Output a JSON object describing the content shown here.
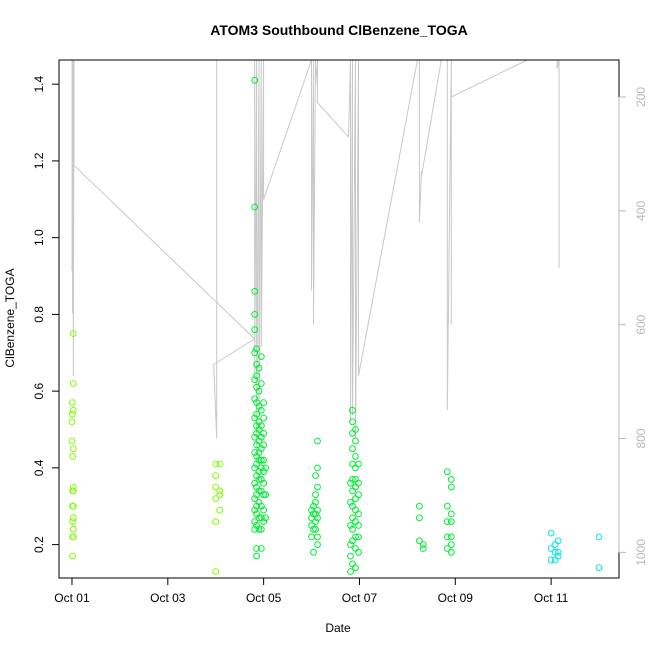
{
  "chart_data": {
    "type": "scatter",
    "title": "ATOM3 Southbound ClBenzene_TOGA",
    "xlabel": "Date",
    "ylabel": "ClBenzene_TOGA",
    "x_ticks": [
      "Oct 01",
      "Oct 03",
      "Oct 05",
      "Oct 07",
      "Oct 09",
      "Oct 11"
    ],
    "y_ticks": [
      "0.2",
      "0.4",
      "0.6",
      "0.8",
      "1.0",
      "1.2",
      "1.4"
    ],
    "y2_ticks": [
      "200",
      "400",
      "600",
      "800",
      "1000"
    ],
    "xlim": [
      "2016-09-30T17:30",
      "2016-10-12T10:00"
    ],
    "ylim": [
      0.113,
      1.463
    ],
    "y2lim": [
      1045,
      135
    ],
    "y2_reversed": true,
    "grid": false,
    "colors": {
      "altitude_line": "#c8c8c8",
      "right_axis": "#b8b8b8",
      "points_early": "#7fff00",
      "points_mid": "#00ee33",
      "points_late": "#00e6e6"
    },
    "series": [
      {
        "role": "points",
        "axis": "left",
        "values": [
          [
            "2016-10-01T00:00",
            0.52
          ],
          [
            "2016-10-01T00:00",
            0.47
          ],
          [
            "2016-10-01T00:10",
            0.57
          ],
          [
            "2016-10-01T00:10",
            0.54
          ],
          [
            "2016-10-01T00:20",
            0.43
          ],
          [
            "2016-10-01T00:20",
            0.34
          ],
          [
            "2016-10-01T00:20",
            0.3
          ],
          [
            "2016-10-01T00:20",
            0.26
          ],
          [
            "2016-10-01T00:20",
            0.22
          ],
          [
            "2016-10-01T00:20",
            0.17
          ],
          [
            "2016-10-01T00:40",
            0.75
          ],
          [
            "2016-10-01T00:40",
            0.62
          ],
          [
            "2016-10-01T00:40",
            0.55
          ],
          [
            "2016-10-01T00:40",
            0.45
          ],
          [
            "2016-10-01T00:40",
            0.35
          ],
          [
            "2016-10-01T00:40",
            0.34
          ],
          [
            "2016-10-01T00:40",
            0.3
          ],
          [
            "2016-10-01T00:40",
            0.27
          ],
          [
            "2016-10-01T00:40",
            0.24
          ],
          [
            "2016-10-01T00:40",
            0.22
          ],
          [
            "2016-10-04T00:00",
            0.41
          ],
          [
            "2016-10-04T00:00",
            0.38
          ],
          [
            "2016-10-04T00:00",
            0.35
          ],
          [
            "2016-10-04T00:00",
            0.32
          ],
          [
            "2016-10-04T00:00",
            0.26
          ],
          [
            "2016-10-04T00:00",
            0.13
          ],
          [
            "2016-10-04T02:00",
            0.41
          ],
          [
            "2016-10-04T02:00",
            0.34
          ],
          [
            "2016-10-04T02:00",
            0.33
          ],
          [
            "2016-10-04T02:00",
            0.29
          ],
          [
            "2016-10-04T19:30",
            1.41
          ],
          [
            "2016-10-04T19:30",
            1.08
          ],
          [
            "2016-10-04T19:30",
            0.86
          ],
          [
            "2016-10-04T19:30",
            0.8
          ],
          [
            "2016-10-04T19:30",
            0.76
          ],
          [
            "2016-10-04T19:30",
            0.7
          ],
          [
            "2016-10-04T19:30",
            0.63
          ],
          [
            "2016-10-04T19:30",
            0.58
          ],
          [
            "2016-10-04T19:30",
            0.53
          ],
          [
            "2016-10-04T19:30",
            0.48
          ],
          [
            "2016-10-04T19:30",
            0.44
          ],
          [
            "2016-10-04T19:30",
            0.4
          ],
          [
            "2016-10-04T19:30",
            0.36
          ],
          [
            "2016-10-04T19:30",
            0.32
          ],
          [
            "2016-10-04T19:30",
            0.29
          ],
          [
            "2016-10-04T19:30",
            0.26
          ],
          [
            "2016-10-04T19:30",
            0.24
          ],
          [
            "2016-10-04T20:30",
            0.71
          ],
          [
            "2016-10-04T20:30",
            0.67
          ],
          [
            "2016-10-04T20:30",
            0.64
          ],
          [
            "2016-10-04T20:30",
            0.61
          ],
          [
            "2016-10-04T20:30",
            0.57
          ],
          [
            "2016-10-04T20:30",
            0.54
          ],
          [
            "2016-10-04T20:30",
            0.51
          ],
          [
            "2016-10-04T20:30",
            0.49
          ],
          [
            "2016-10-04T20:30",
            0.46
          ],
          [
            "2016-10-04T20:30",
            0.43
          ],
          [
            "2016-10-04T20:30",
            0.41
          ],
          [
            "2016-10-04T20:30",
            0.38
          ],
          [
            "2016-10-04T20:30",
            0.35
          ],
          [
            "2016-10-04T20:30",
            0.33
          ],
          [
            "2016-10-04T20:30",
            0.3
          ],
          [
            "2016-10-04T20:30",
            0.28
          ],
          [
            "2016-10-04T20:30",
            0.25
          ],
          [
            "2016-10-04T20:30",
            0.19
          ],
          [
            "2016-10-04T20:30",
            0.17
          ],
          [
            "2016-10-04T21:40",
            0.66
          ],
          [
            "2016-10-04T21:40",
            0.6
          ],
          [
            "2016-10-04T21:40",
            0.56
          ],
          [
            "2016-10-04T21:40",
            0.52
          ],
          [
            "2016-10-04T21:40",
            0.5
          ],
          [
            "2016-10-04T21:40",
            0.47
          ],
          [
            "2016-10-04T21:40",
            0.44
          ],
          [
            "2016-10-04T21:40",
            0.42
          ],
          [
            "2016-10-04T21:40",
            0.39
          ],
          [
            "2016-10-04T21:40",
            0.37
          ],
          [
            "2016-10-04T21:40",
            0.34
          ],
          [
            "2016-10-04T21:40",
            0.31
          ],
          [
            "2016-10-04T21:40",
            0.27
          ],
          [
            "2016-10-04T21:40",
            0.24
          ],
          [
            "2016-10-04T22:50",
            0.69
          ],
          [
            "2016-10-04T22:50",
            0.62
          ],
          [
            "2016-10-04T22:50",
            0.55
          ],
          [
            "2016-10-04T22:50",
            0.51
          ],
          [
            "2016-10-04T22:50",
            0.48
          ],
          [
            "2016-10-04T22:50",
            0.45
          ],
          [
            "2016-10-04T22:50",
            0.42
          ],
          [
            "2016-10-04T22:50",
            0.4
          ],
          [
            "2016-10-04T22:50",
            0.37
          ],
          [
            "2016-10-04T22:50",
            0.34
          ],
          [
            "2016-10-04T22:50",
            0.3
          ],
          [
            "2016-10-04T22:50",
            0.27
          ],
          [
            "2016-10-04T22:50",
            0.24
          ],
          [
            "2016-10-04T22:50",
            0.19
          ],
          [
            "2016-10-05T00:00",
            0.57
          ],
          [
            "2016-10-05T00:00",
            0.53
          ],
          [
            "2016-10-05T00:00",
            0.49
          ],
          [
            "2016-10-05T00:00",
            0.46
          ],
          [
            "2016-10-05T00:00",
            0.42
          ],
          [
            "2016-10-05T00:00",
            0.39
          ],
          [
            "2016-10-05T00:00",
            0.36
          ],
          [
            "2016-10-05T00:00",
            0.33
          ],
          [
            "2016-10-05T00:00",
            0.29
          ],
          [
            "2016-10-05T00:00",
            0.26
          ],
          [
            "2016-10-05T01:00",
            0.4
          ],
          [
            "2016-10-05T01:00",
            0.33
          ],
          [
            "2016-10-05T01:00",
            0.27
          ],
          [
            "2016-10-06T00:00",
            0.29
          ],
          [
            "2016-10-06T00:00",
            0.27
          ],
          [
            "2016-10-06T00:00",
            0.25
          ],
          [
            "2016-10-06T00:00",
            0.22
          ],
          [
            "2016-10-06T01:00",
            0.3
          ],
          [
            "2016-10-06T01:00",
            0.28
          ],
          [
            "2016-10-06T01:00",
            0.24
          ],
          [
            "2016-10-06T01:00",
            0.18
          ],
          [
            "2016-10-06T02:00",
            0.38
          ],
          [
            "2016-10-06T02:00",
            0.33
          ],
          [
            "2016-10-06T02:00",
            0.31
          ],
          [
            "2016-10-06T02:00",
            0.28
          ],
          [
            "2016-10-06T02:00",
            0.26
          ],
          [
            "2016-10-06T02:00",
            0.24
          ],
          [
            "2016-10-06T03:00",
            0.47
          ],
          [
            "2016-10-06T03:00",
            0.4
          ],
          [
            "2016-10-06T03:00",
            0.35
          ],
          [
            "2016-10-06T03:00",
            0.29
          ],
          [
            "2016-10-06T03:00",
            0.27
          ],
          [
            "2016-10-06T03:00",
            0.22
          ],
          [
            "2016-10-06T03:00",
            0.2
          ],
          [
            "2016-10-06T19:30",
            0.36
          ],
          [
            "2016-10-06T19:30",
            0.31
          ],
          [
            "2016-10-06T19:30",
            0.25
          ],
          [
            "2016-10-06T19:30",
            0.2
          ],
          [
            "2016-10-06T19:30",
            0.17
          ],
          [
            "2016-10-06T19:30",
            0.13
          ],
          [
            "2016-10-06T20:30",
            0.55
          ],
          [
            "2016-10-06T20:30",
            0.52
          ],
          [
            "2016-10-06T20:30",
            0.49
          ],
          [
            "2016-10-06T20:30",
            0.45
          ],
          [
            "2016-10-06T20:30",
            0.41
          ],
          [
            "2016-10-06T20:30",
            0.37
          ],
          [
            "2016-10-06T20:30",
            0.34
          ],
          [
            "2016-10-06T20:30",
            0.3
          ],
          [
            "2016-10-06T20:30",
            0.27
          ],
          [
            "2016-10-06T20:30",
            0.24
          ],
          [
            "2016-10-06T20:30",
            0.21
          ],
          [
            "2016-10-06T20:30",
            0.15
          ],
          [
            "2016-10-06T22:00",
            0.5
          ],
          [
            "2016-10-06T22:00",
            0.47
          ],
          [
            "2016-10-06T22:00",
            0.43
          ],
          [
            "2016-10-06T22:00",
            0.4
          ],
          [
            "2016-10-06T22:00",
            0.37
          ],
          [
            "2016-10-06T22:00",
            0.35
          ],
          [
            "2016-10-06T22:00",
            0.32
          ],
          [
            "2016-10-06T22:00",
            0.29
          ],
          [
            "2016-10-06T22:00",
            0.26
          ],
          [
            "2016-10-06T22:00",
            0.22
          ],
          [
            "2016-10-06T22:00",
            0.19
          ],
          [
            "2016-10-06T22:00",
            0.14
          ],
          [
            "2016-10-06T23:30",
            0.41
          ],
          [
            "2016-10-06T23:30",
            0.36
          ],
          [
            "2016-10-06T23:30",
            0.33
          ],
          [
            "2016-10-06T23:30",
            0.28
          ],
          [
            "2016-10-06T23:30",
            0.25
          ],
          [
            "2016-10-06T23:30",
            0.22
          ],
          [
            "2016-10-06T23:30",
            0.18
          ],
          [
            "2016-10-08T06:00",
            0.3
          ],
          [
            "2016-10-08T06:00",
            0.27
          ],
          [
            "2016-10-08T06:00",
            0.21
          ],
          [
            "2016-10-08T08:00",
            0.2
          ],
          [
            "2016-10-08T08:00",
            0.19
          ],
          [
            "2016-10-08T20:00",
            0.39
          ],
          [
            "2016-10-08T20:00",
            0.3
          ],
          [
            "2016-10-08T20:00",
            0.26
          ],
          [
            "2016-10-08T20:00",
            0.22
          ],
          [
            "2016-10-08T20:00",
            0.19
          ],
          [
            "2016-10-08T22:00",
            0.37
          ],
          [
            "2016-10-08T22:00",
            0.35
          ],
          [
            "2016-10-08T22:00",
            0.28
          ],
          [
            "2016-10-08T22:00",
            0.26
          ],
          [
            "2016-10-08T22:00",
            0.22
          ],
          [
            "2016-10-08T22:00",
            0.2
          ],
          [
            "2016-10-08T22:00",
            0.18
          ],
          [
            "2016-10-11T00:00",
            0.23
          ],
          [
            "2016-10-11T00:00",
            0.19
          ],
          [
            "2016-10-11T00:00",
            0.16
          ],
          [
            "2016-10-11T02:00",
            0.2
          ],
          [
            "2016-10-11T02:00",
            0.18
          ],
          [
            "2016-10-11T02:00",
            0.16
          ],
          [
            "2016-10-11T03:30",
            0.21
          ],
          [
            "2016-10-11T03:30",
            0.18
          ],
          [
            "2016-10-11T03:30",
            0.17
          ],
          [
            "2016-10-12T00:00",
            0.22
          ],
          [
            "2016-10-12T00:00",
            0.14
          ]
        ]
      },
      {
        "role": "altitude-line",
        "axis": "right",
        "values": [
          [
            "2016-10-01T00:00",
            135
          ],
          [
            "2016-10-01T00:00",
            505
          ],
          [
            "2016-10-01T00:20",
            135
          ],
          [
            "2016-10-01T00:20",
            580
          ],
          [
            "2016-10-01T00:40",
            135
          ],
          [
            "2016-10-01T00:40",
            690
          ],
          [
            "2016-10-01T01:00",
            135
          ],
          [
            "2016-10-01T01:00",
            320
          ],
          [
            "2016-10-04T19:30",
            625
          ],
          [
            "2016-10-03T23:00",
            670
          ],
          [
            "2016-10-04T00:30",
            800
          ],
          [
            "2016-10-04T00:30",
            135
          ],
          [
            "2016-10-04T02:00",
            135
          ],
          [
            "2016-10-04T19:30",
            135
          ],
          [
            "2016-10-04T19:30",
            690
          ],
          [
            "2016-10-04T20:30",
            135
          ],
          [
            "2016-10-04T20:30",
            820
          ],
          [
            "2016-10-04T21:40",
            135
          ],
          [
            "2016-10-04T21:40",
            780
          ],
          [
            "2016-10-04T22:50",
            135
          ],
          [
            "2016-10-04T22:50",
            640
          ],
          [
            "2016-10-05T00:00",
            135
          ],
          [
            "2016-10-05T00:00",
            380
          ],
          [
            "2016-10-06T00:00",
            135
          ],
          [
            "2016-10-06T00:00",
            540
          ],
          [
            "2016-10-06T01:00",
            135
          ],
          [
            "2016-10-06T01:00",
            600
          ],
          [
            "2016-10-06T02:00",
            135
          ],
          [
            "2016-10-06T02:00",
            180
          ],
          [
            "2016-10-06T03:00",
            135
          ],
          [
            "2016-10-06T03:00",
            210
          ],
          [
            "2016-10-06T18:30",
            270
          ],
          [
            "2016-10-06T19:30",
            135
          ],
          [
            "2016-10-06T19:30",
            770
          ],
          [
            "2016-10-06T20:30",
            135
          ],
          [
            "2016-10-06T20:30",
            760
          ],
          [
            "2016-10-06T22:00",
            135
          ],
          [
            "2016-10-06T22:00",
            800
          ],
          [
            "2016-10-06T23:30",
            135
          ],
          [
            "2016-10-06T23:30",
            690
          ],
          [
            "2016-10-08T05:00",
            135
          ],
          [
            "2016-10-08T06:00",
            135
          ],
          [
            "2016-10-08T06:00",
            420
          ],
          [
            "2016-10-08T07:00",
            330
          ],
          [
            "2016-10-08T07:00",
            340
          ],
          [
            "2016-10-08T17:00",
            135
          ],
          [
            "2016-10-08T20:00",
            135
          ],
          [
            "2016-10-08T20:00",
            750
          ],
          [
            "2016-10-08T22:00",
            135
          ],
          [
            "2016-10-08T22:00",
            600
          ],
          [
            "2016-10-08T22:00",
            200
          ],
          [
            "2016-10-10T12:00",
            135
          ],
          [
            "2016-10-11T03:00",
            135
          ],
          [
            "2016-10-11T03:00",
            150
          ],
          [
            "2016-10-11T04:00",
            135
          ],
          [
            "2016-10-11T04:00",
            500
          ],
          [
            "2016-10-11T04:00",
            135
          ]
        ]
      }
    ]
  }
}
